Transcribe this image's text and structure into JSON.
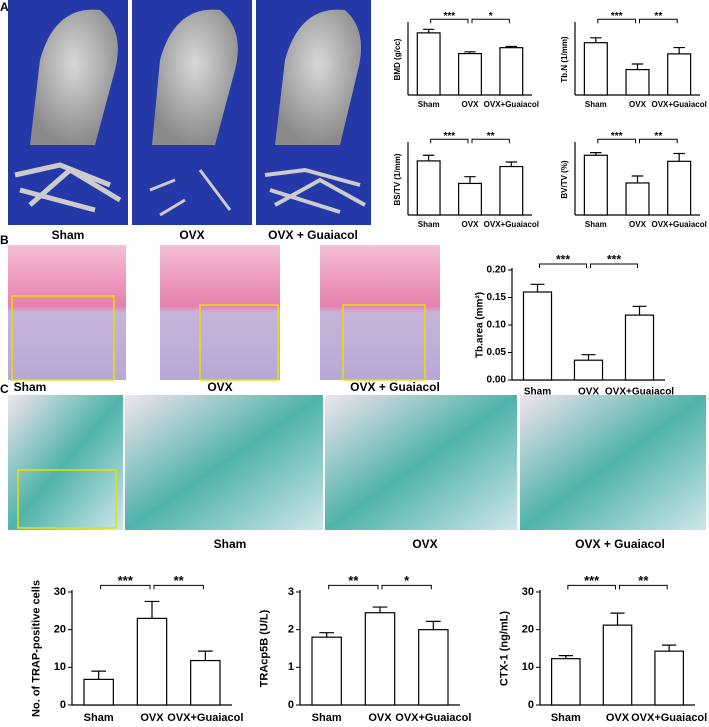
{
  "panel_labels": [
    "A",
    "B",
    "C"
  ],
  "image_captions": {
    "a": [
      "Sham",
      "OVX",
      "OVX + Guaiacol"
    ],
    "b": [
      "Sham",
      "OVX",
      "OVX + Guaiacol"
    ],
    "c": [
      "Sham",
      "OVX",
      "OVX + Guaiacol"
    ]
  },
  "chart_data": [
    {
      "type": "bar",
      "ylabel": "BMD (g/cc)",
      "categories": [
        "Sham",
        "OVX",
        "OVX+Guaiacol"
      ],
      "values": [
        1.05,
        0.7,
        0.8
      ],
      "errors": [
        0.06,
        0.03,
        0.02
      ],
      "ylim": [
        0,
        1.2
      ],
      "color": "#ffffff",
      "annotations": [
        "***",
        "*"
      ]
    },
    {
      "type": "bar",
      "ylabel": "Tb.N (1/mm)",
      "categories": [
        "Sham",
        "OVX",
        "OVX+Guaiacol"
      ],
      "values": [
        1.4,
        0.68,
        1.1
      ],
      "errors": [
        0.13,
        0.15,
        0.17
      ],
      "ylim": [
        0,
        1.9
      ],
      "color": "#ffffff",
      "annotations": [
        "***",
        "**"
      ]
    },
    {
      "type": "bar",
      "ylabel": "BS/TV (1/mm)",
      "categories": [
        "Sham",
        "OVX",
        "OVX+Guaiacol"
      ],
      "values": [
        4.8,
        2.8,
        4.3
      ],
      "errors": [
        0.5,
        0.6,
        0.4
      ],
      "ylim": [
        0,
        6.3
      ],
      "color": "#ffffff",
      "annotations": [
        "***",
        "**"
      ]
    },
    {
      "type": "bar",
      "ylabel": "BV/TV (%)",
      "categories": [
        "Sham",
        "OVX",
        "OVX+Guaiacol"
      ],
      "values": [
        6.9,
        3.7,
        6.2
      ],
      "errors": [
        0.3,
        0.8,
        0.9
      ],
      "ylim": [
        0,
        8.2
      ],
      "color": "#ffffff",
      "annotations": [
        "***",
        "**"
      ]
    },
    {
      "type": "bar",
      "ylabel": "Tb.area (mm²)",
      "categories": [
        "Sham",
        "OVX",
        "OVX+Guaiacol"
      ],
      "values": [
        0.16,
        0.036,
        0.118
      ],
      "errors": [
        0.014,
        0.01,
        0.016
      ],
      "ylim": [
        0,
        0.2
      ],
      "yticks": [
        {
          "value": 0,
          "label": "0.00"
        },
        {
          "value": 0.05,
          "label": "0.05"
        },
        {
          "value": 0.1,
          "label": "0.10"
        },
        {
          "value": 0.15,
          "label": "0.15"
        },
        {
          "value": 0.2,
          "label": "0.20"
        }
      ],
      "color": "#ffffff",
      "annotations": [
        "***",
        "***"
      ]
    },
    {
      "type": "bar",
      "ylabel": "No. of TRAP-positive cells",
      "categories": [
        "Sham",
        "OVX",
        "OVX+Guaiacol"
      ],
      "values": [
        6.8,
        23,
        11.8
      ],
      "errors": [
        2.2,
        4.5,
        2.5
      ],
      "ylim": [
        0,
        30
      ],
      "yticks": [
        0,
        10,
        20,
        30
      ],
      "color": "#ffffff",
      "annotations": [
        "***",
        "**"
      ]
    },
    {
      "type": "bar",
      "ylabel": "TRAcp5B (U/L)",
      "categories": [
        "Sham",
        "OVX",
        "OVX+Guaiacol"
      ],
      "values": [
        1.8,
        2.45,
        2.0
      ],
      "errors": [
        0.12,
        0.15,
        0.22
      ],
      "ylim": [
        0,
        3
      ],
      "yticks": [
        0,
        1,
        2,
        3
      ],
      "color": "#ffffff",
      "annotations": [
        "**",
        "*"
      ]
    },
    {
      "type": "bar",
      "ylabel": "CTX-1 (ng/mL)",
      "categories": [
        "Sham",
        "OVX",
        "OVX+Guaiacol"
      ],
      "values": [
        12.3,
        21.2,
        14.3
      ],
      "errors": [
        0.8,
        3.2,
        1.6
      ],
      "ylim": [
        0,
        30
      ],
      "yticks": [
        0,
        10,
        20,
        30
      ],
      "color": "#ffffff",
      "annotations": [
        "***",
        "**"
      ]
    }
  ]
}
